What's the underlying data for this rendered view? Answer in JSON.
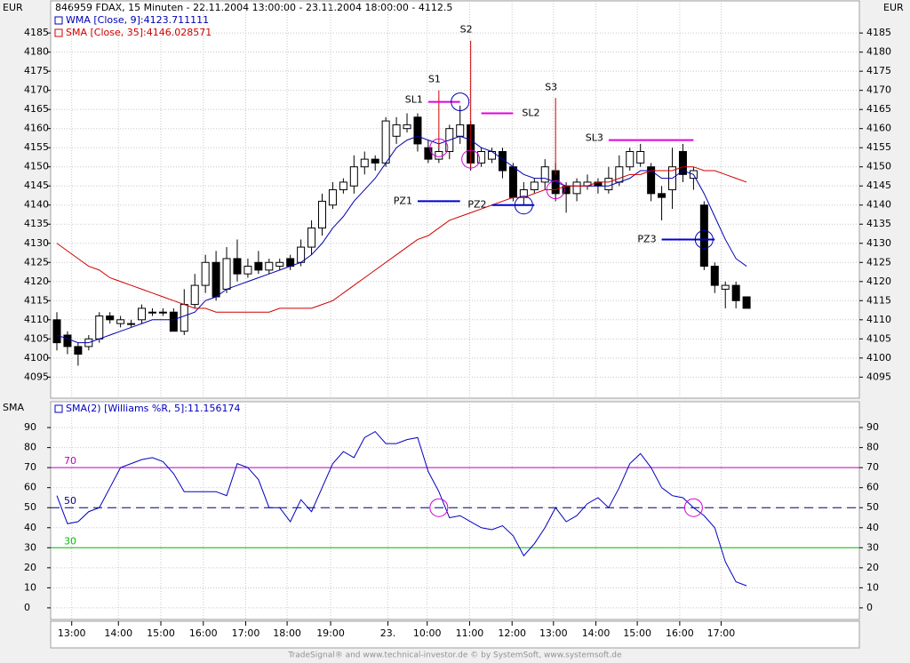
{
  "chart_data": [
    {
      "type": "candlestick",
      "title": "846959  FDAX, 15 Minuten - 22.11.2004 13:00:00 - 23.11.2004 18:00:00 - 4112.5",
      "axis_label": "EUR",
      "open": [
        4110,
        4106,
        4103,
        4103,
        4105,
        4111,
        4109,
        4109,
        4110,
        4112,
        4112,
        4112,
        4107,
        4114,
        4119,
        4125,
        4118,
        4126,
        4122,
        4125,
        4123,
        4124,
        4126,
        4125,
        4129,
        4134,
        4140,
        4144,
        4145,
        4150,
        4152,
        4151,
        4158,
        4160,
        4163,
        4155,
        4152,
        4154,
        4158,
        4161,
        4151,
        4152,
        4154,
        4150,
        4142,
        4144,
        4146,
        4149,
        4145,
        4143,
        4145,
        4146,
        4144,
        4146,
        4150,
        4151,
        4150,
        4143,
        4144,
        4154,
        4147,
        4140,
        4124,
        4118,
        4119,
        4116
      ],
      "high": [
        4112,
        4107,
        4104,
        4106,
        4112,
        4112,
        4111,
        4110,
        4114,
        4113,
        4113,
        4113,
        4118,
        4122,
        4127,
        4128,
        4129,
        4131,
        4126,
        4128,
        4126,
        4126,
        4127,
        4131,
        4136,
        4143,
        4146,
        4147,
        4153,
        4154,
        4153,
        4163,
        4163,
        4164,
        4164,
        4157,
        4156,
        4161,
        4166,
        4162,
        4155,
        4155,
        4155,
        4151,
        4146,
        4147,
        4152,
        4151,
        4146,
        4147,
        4148,
        4147,
        4150,
        4153,
        4155,
        4156,
        4151,
        4145,
        4155,
        4156,
        4150,
        4141,
        4125,
        4120,
        4120,
        4116
      ],
      "low": [
        4102,
        4101,
        4098,
        4102,
        4104,
        4109,
        4108,
        4108,
        4109,
        4111,
        4111,
        4107,
        4106,
        4113,
        4117,
        4115,
        4117,
        4120,
        4121,
        4122,
        4122,
        4123,
        4123,
        4124,
        4127,
        4132,
        4139,
        4143,
        4143,
        4148,
        4149,
        4150,
        4156,
        4159,
        4154,
        4151,
        4151,
        4152,
        4156,
        4149,
        4150,
        4151,
        4147,
        4141,
        4140,
        4143,
        4144,
        4141,
        4138,
        4141,
        4144,
        4143,
        4143,
        4145,
        4149,
        4150,
        4141,
        4136,
        4139,
        4146,
        4144,
        4123,
        4117,
        4113,
        4113,
        4113
      ],
      "close": [
        4104,
        4103,
        4101,
        4105,
        4111,
        4110,
        4110,
        4109,
        4113,
        4112,
        4112,
        4107,
        4114,
        4119,
        4125,
        4116,
        4126,
        4122,
        4124,
        4123,
        4125,
        4125,
        4124,
        4129,
        4134,
        4141,
        4144,
        4146,
        4150,
        4152,
        4151,
        4162,
        4161,
        4161,
        4156,
        4152,
        4154,
        4160,
        4161,
        4151,
        4154,
        4154,
        4149,
        4142,
        4144,
        4146,
        4150,
        4143,
        4143,
        4146,
        4146,
        4145,
        4147,
        4150,
        4154,
        4154,
        4143,
        4142,
        4150,
        4148,
        4149,
        4124,
        4119,
        4119,
        4115,
        4113
      ],
      "series": [
        {
          "name": "WMA [Close, 9]:4123.711111",
          "color": "#0000b0",
          "values": [
            4106,
            4105,
            4104,
            4104,
            4105,
            4106,
            4107,
            4108,
            4109,
            4110,
            4110,
            4110,
            4111,
            4112,
            4115,
            4116,
            4118,
            4119,
            4120,
            4121,
            4122,
            4123,
            4124,
            4125,
            4127,
            4130,
            4134,
            4137,
            4141,
            4144,
            4147,
            4151,
            4155,
            4157,
            4158,
            4157,
            4156,
            4157,
            4158,
            4157,
            4155,
            4154,
            4152,
            4150,
            4148,
            4147,
            4147,
            4146,
            4145,
            4145,
            4145,
            4145,
            4145,
            4146,
            4147,
            4149,
            4149,
            4147,
            4147,
            4149,
            4148,
            4143,
            4137,
            4131,
            4126,
            4124
          ]
        },
        {
          "name": "SMA [Close, 35]:4146.028571",
          "color": "#d00000",
          "values": [
            4130,
            4128,
            4126,
            4124,
            4123,
            4121,
            4120,
            4119,
            4118,
            4117,
            4116,
            4115,
            4114,
            4113,
            4113,
            4112,
            4112,
            4112,
            4112,
            4112,
            4112,
            4113,
            4113,
            4113,
            4113,
            4114,
            4115,
            4117,
            4119,
            4121,
            4123,
            4125,
            4127,
            4129,
            4131,
            4132,
            4134,
            4136,
            4137,
            4138,
            4139,
            4140,
            4141,
            4142,
            4142,
            4143,
            4144,
            4144,
            4145,
            4145,
            4145,
            4146,
            4146,
            4147,
            4148,
            4148,
            4149,
            4149,
            4149,
            4150,
            4150,
            4149,
            4149,
            4148,
            4147,
            4146
          ]
        }
      ],
      "ylim": [
        4089.5,
        4193.4
      ],
      "yticks": [
        4095,
        4100,
        4105,
        4110,
        4115,
        4120,
        4125,
        4130,
        4135,
        4140,
        4145,
        4150,
        4155,
        4160,
        4165,
        4170,
        4175,
        4180,
        4185
      ],
      "grid": true,
      "signals": [
        {
          "label": "S1",
          "x": 36,
          "from": 4155,
          "to": 4170
        },
        {
          "label": "S2",
          "x": 39,
          "from": 4150,
          "to": 4183
        },
        {
          "label": "S3",
          "x": 47,
          "from": 4148,
          "to": 4168
        }
      ],
      "stop_levels": [
        {
          "label": "SL1",
          "value": 4167,
          "x": [
            35,
            38
          ]
        },
        {
          "label": "SL2",
          "value": 4164,
          "x": [
            40,
            43
          ]
        },
        {
          "label": "SL3",
          "value": 4157,
          "x": [
            52,
            60
          ]
        }
      ],
      "zones": [
        {
          "label": "PZ1",
          "value": 4141,
          "x": [
            34,
            38
          ]
        },
        {
          "label": "PZ2",
          "value": 4140,
          "x": [
            41,
            45
          ]
        },
        {
          "label": "PZ3",
          "value": 4131,
          "x": [
            57,
            62
          ]
        }
      ],
      "circles": [
        {
          "x": 38,
          "value": 4167,
          "color": "#0000b0"
        },
        {
          "x": 44,
          "value": 4140,
          "color": "#0000b0"
        },
        {
          "x": 61,
          "value": 4131,
          "color": "#0000b0"
        },
        {
          "x": 36,
          "value": 4155,
          "color": "#d000d0"
        },
        {
          "x": 39,
          "value": 4152,
          "color": "#d000d0"
        },
        {
          "x": 47,
          "value": 4144,
          "color": "#d000d0"
        }
      ],
      "stop_color": "#e000e0",
      "zone_color": "#0000d0"
    },
    {
      "type": "line",
      "axis_label": "SMA",
      "series": [
        {
          "name": "SMA(2) [Williams %R, 5]:11.156174",
          "color": "#0000c0",
          "values": [
            56,
            42,
            43,
            48,
            50,
            60,
            70,
            72,
            74,
            75,
            73,
            67,
            58,
            58,
            58,
            58,
            56,
            72,
            70,
            64,
            50,
            50,
            43,
            54,
            48,
            60,
            72,
            78,
            75,
            85,
            88,
            82,
            82,
            84,
            85,
            68,
            58,
            45,
            46,
            43,
            40,
            39,
            41,
            36,
            26,
            32,
            40,
            50,
            43,
            46,
            52,
            55,
            50,
            60,
            72,
            77,
            70,
            60,
            56,
            55,
            50,
            46,
            40,
            23,
            13,
            11
          ]
        }
      ],
      "levels": [
        {
          "value": 70,
          "color": "#c000c0"
        },
        {
          "value": 50,
          "color": "#000080",
          "dashed": true
        },
        {
          "value": 30,
          "color": "#00c000"
        }
      ],
      "circles": [
        {
          "x": 36,
          "value": 50,
          "color": "#d000d0"
        },
        {
          "x": 60,
          "value": 50,
          "color": "#d000d0"
        }
      ],
      "ylim": [
        -5.8,
        102.9
      ],
      "yticks": [
        0,
        10,
        20,
        30,
        40,
        50,
        60,
        70,
        80,
        90
      ],
      "grid": true
    }
  ],
  "xticks": [
    {
      "value": 1.4,
      "label": "13:00"
    },
    {
      "value": 5.8,
      "label": "14:00"
    },
    {
      "value": 9.8,
      "label": "15:00"
    },
    {
      "value": 13.8,
      "label": "16:00"
    },
    {
      "value": 17.8,
      "label": "17:00"
    },
    {
      "value": 21.7,
      "label": "18:00"
    },
    {
      "value": 25.8,
      "label": "19:00"
    },
    {
      "value": 31.2,
      "label": "23."
    },
    {
      "value": 34.9,
      "label": "10:00"
    },
    {
      "value": 38.9,
      "label": "11:00"
    },
    {
      "value": 42.9,
      "label": "12:00"
    },
    {
      "value": 46.8,
      "label": "13:00"
    },
    {
      "value": 50.8,
      "label": "14:00"
    },
    {
      "value": 54.7,
      "label": "15:00"
    },
    {
      "value": 58.7,
      "label": "16:00"
    },
    {
      "value": 62.6,
      "label": "17:00"
    }
  ],
  "footer": "TradeSignal® and www.technical-investor.de © by SystemSoft, www.systemsoft.de"
}
